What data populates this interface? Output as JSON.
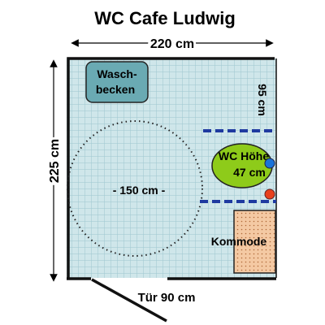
{
  "title": "WC Cafe Ludwig",
  "dimensions": {
    "width": "220 cm",
    "depth": "225 cm",
    "clearance": "95 cm",
    "turning_circle": "- 150 cm -",
    "door": "Tür  90 cm"
  },
  "fixtures": {
    "sink_line1": "Wasch-",
    "sink_line2": "becken",
    "wc_line1": "WC Höhe",
    "wc_line2": "47 cm",
    "cabinet": "Kommode"
  },
  "colors": {
    "tile_bg": "#cfe6ea",
    "tile_grid": "#9cc6cf",
    "sink_fill": "#6aaab3",
    "wc_fill": "#8ecb1a",
    "cabinet_fill": "#f4c9a3",
    "grab_bar": "#1f3aa0",
    "button_blue": "#1a73d9",
    "button_red": "#e8401c"
  }
}
